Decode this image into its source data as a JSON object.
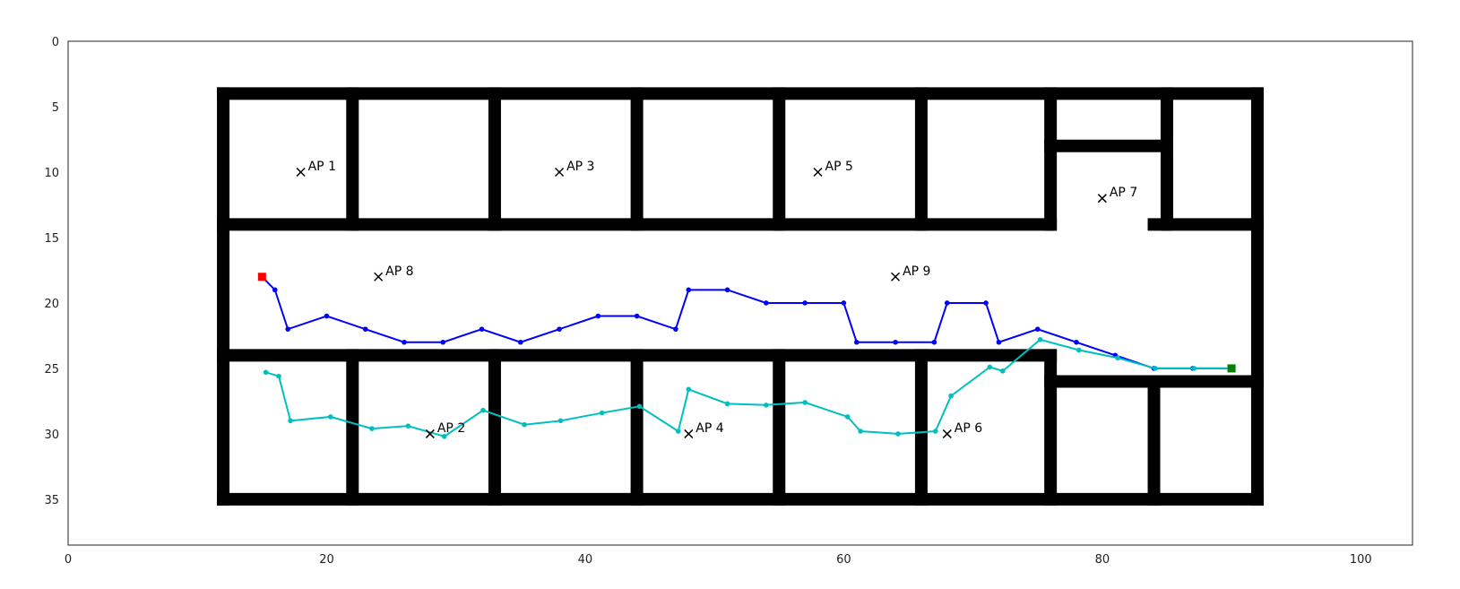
{
  "chart_data": {
    "type": "scatter",
    "title": "",
    "xlabel": "",
    "ylabel": "",
    "xlim": [
      0,
      104
    ],
    "ylim": [
      0,
      38.5
    ],
    "y_inverted": true,
    "grid": false,
    "x_ticks": [
      0,
      20,
      40,
      60,
      80,
      100
    ],
    "y_ticks": [
      0,
      5,
      10,
      15,
      20,
      25,
      30,
      35
    ],
    "walls": [
      [
        12,
        4,
        92,
        4
      ],
      [
        12,
        35,
        92,
        35
      ],
      [
        12,
        4,
        12,
        35
      ],
      [
        92,
        4,
        92,
        35
      ],
      [
        12,
        14,
        76,
        14
      ],
      [
        84,
        14,
        92,
        14
      ],
      [
        12,
        24,
        76,
        24
      ],
      [
        76,
        26,
        92,
        26
      ],
      [
        76,
        4,
        76,
        14
      ],
      [
        76,
        24,
        76,
        35
      ],
      [
        76,
        8,
        85,
        8
      ],
      [
        22,
        4,
        22,
        14
      ],
      [
        33,
        4,
        33,
        14
      ],
      [
        44,
        4,
        44,
        14
      ],
      [
        55,
        4,
        55,
        14
      ],
      [
        66,
        4,
        66,
        14
      ],
      [
        85,
        4,
        85,
        14
      ],
      [
        22,
        24,
        22,
        35
      ],
      [
        33,
        24,
        33,
        35
      ],
      [
        44,
        24,
        44,
        35
      ],
      [
        55,
        24,
        55,
        35
      ],
      [
        66,
        24,
        66,
        35
      ],
      [
        84,
        26,
        84,
        35
      ]
    ],
    "access_points": [
      {
        "label": "AP 1",
        "x": 18,
        "y": 10
      },
      {
        "label": "AP 2",
        "x": 28,
        "y": 30
      },
      {
        "label": "AP 3",
        "x": 38,
        "y": 10
      },
      {
        "label": "AP 4",
        "x": 48,
        "y": 30
      },
      {
        "label": "AP 5",
        "x": 58,
        "y": 10
      },
      {
        "label": "AP 6",
        "x": 68,
        "y": 30
      },
      {
        "label": "AP 7",
        "x": 80,
        "y": 12
      },
      {
        "label": "AP 8",
        "x": 24,
        "y": 18
      },
      {
        "label": "AP 9",
        "x": 64,
        "y": 18
      }
    ],
    "start_marker": {
      "x": 15,
      "y": 18,
      "color": "#ff0000"
    },
    "end_marker": {
      "x": 90,
      "y": 25,
      "color": "#008000"
    },
    "series": [
      {
        "color": "#0000ff",
        "x": [
          15,
          16,
          17,
          20,
          23,
          26,
          29,
          32,
          35,
          38,
          41,
          44,
          47,
          48,
          51,
          54,
          57,
          60,
          61,
          64,
          67,
          68,
          71,
          72,
          75,
          78,
          81,
          84,
          87,
          90
        ],
        "y": [
          18,
          19,
          22,
          21,
          22,
          23,
          23,
          22,
          23,
          22,
          21,
          21,
          22,
          19,
          19,
          20,
          20,
          20,
          23,
          23,
          23,
          20,
          20,
          23,
          22,
          23,
          24,
          25,
          25,
          25
        ]
      },
      {
        "color": "#00bfbf",
        "x": [
          15.3,
          16.3,
          17.2,
          20.3,
          23.5,
          26.3,
          29.1,
          32.1,
          35.3,
          38.1,
          41.3,
          44.2,
          47.2,
          48.0,
          51.0,
          54.0,
          57.0,
          60.3,
          61.3,
          64.2,
          67.1,
          68.3,
          71.3,
          72.3,
          75.2,
          78.2,
          81.2,
          84.1,
          87.1,
          90.0
        ],
        "y": [
          25.3,
          25.6,
          29.0,
          28.7,
          29.6,
          29.4,
          30.2,
          28.2,
          29.3,
          29.0,
          28.4,
          27.9,
          29.8,
          26.6,
          27.7,
          27.8,
          27.6,
          28.7,
          29.8,
          30.0,
          29.8,
          27.1,
          24.9,
          25.2,
          22.8,
          23.6,
          24.2,
          25.0,
          25.0,
          25.0
        ]
      }
    ]
  }
}
